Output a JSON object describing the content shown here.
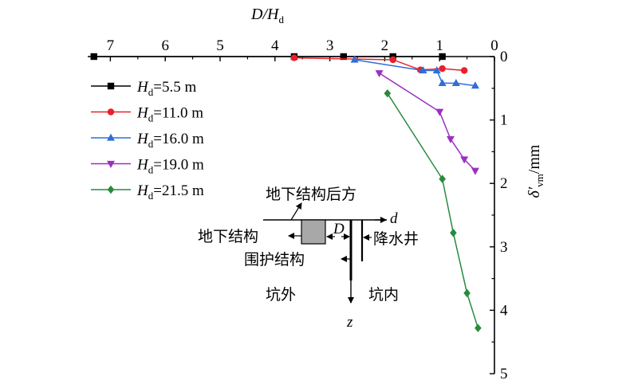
{
  "chart_data": {
    "type": "line",
    "x_axis": {
      "label_main": "D/H",
      "label_sub": "d",
      "position": "top",
      "reversed": true,
      "range": [
        0,
        7.5
      ],
      "ticks": [
        7,
        6,
        5,
        4,
        3,
        2,
        1,
        0
      ],
      "tick_labels": [
        "7",
        "6",
        "5",
        "4",
        "3",
        "2",
        "1",
        "0"
      ]
    },
    "y_axis": {
      "label_main": "δ′",
      "label_sub": "vm",
      "label_unit": "/mm",
      "position": "right",
      "inverted": true,
      "range": [
        0,
        5
      ],
      "ticks": [
        0,
        1,
        2,
        3,
        4,
        5
      ],
      "tick_labels": [
        "0",
        "1",
        "2",
        "3",
        "4",
        "5"
      ]
    },
    "legend": {
      "placement": "top-left",
      "prefix_main": "H",
      "prefix_sub": "d"
    },
    "series": [
      {
        "name": "=5.5 m",
        "color": "#000000",
        "marker": "square",
        "points": [
          [
            7.3,
            0.0
          ],
          [
            3.65,
            0.0
          ],
          [
            2.75,
            0.0
          ],
          [
            1.85,
            0.0
          ],
          [
            0.95,
            0.0
          ]
        ]
      },
      {
        "name": "=11.0 m",
        "color": "#e8202a",
        "marker": "circle",
        "points": [
          [
            3.65,
            0.02
          ],
          [
            1.85,
            0.05
          ],
          [
            1.35,
            0.21
          ],
          [
            0.95,
            0.19
          ],
          [
            0.55,
            0.22
          ]
        ]
      },
      {
        "name": "=16.0 m",
        "color": "#2f6ed8",
        "marker": "triangle-up",
        "points": [
          [
            2.55,
            0.05
          ],
          [
            1.3,
            0.22
          ],
          [
            1.05,
            0.22
          ],
          [
            0.95,
            0.42
          ],
          [
            0.7,
            0.42
          ],
          [
            0.35,
            0.46
          ]
        ]
      },
      {
        "name": "=19.0 m",
        "color": "#9b30c0",
        "marker": "triangle-down",
        "points": [
          [
            2.1,
            0.26
          ],
          [
            1.0,
            0.87
          ],
          [
            0.8,
            1.3
          ],
          [
            0.55,
            1.62
          ],
          [
            0.35,
            1.8
          ]
        ]
      },
      {
        "name": "=21.5 m",
        "color": "#2a8a3c",
        "marker": "diamond",
        "points": [
          [
            1.95,
            0.58
          ],
          [
            0.95,
            1.93
          ],
          [
            0.75,
            2.78
          ],
          [
            0.5,
            3.73
          ],
          [
            0.3,
            4.28
          ]
        ]
      }
    ]
  },
  "inset": {
    "label_behind_structure": "地下结构后方",
    "label_structure": "地下结构",
    "label_retaining": "围护结构",
    "label_dewatering_well": "降水井",
    "label_outside_pit": "坑外",
    "label_inside_pit": "坑内",
    "axis_d": "d",
    "axis_z": "z",
    "label_D": "D",
    "colors": {
      "structure_fill": "#a8a8a8"
    }
  }
}
